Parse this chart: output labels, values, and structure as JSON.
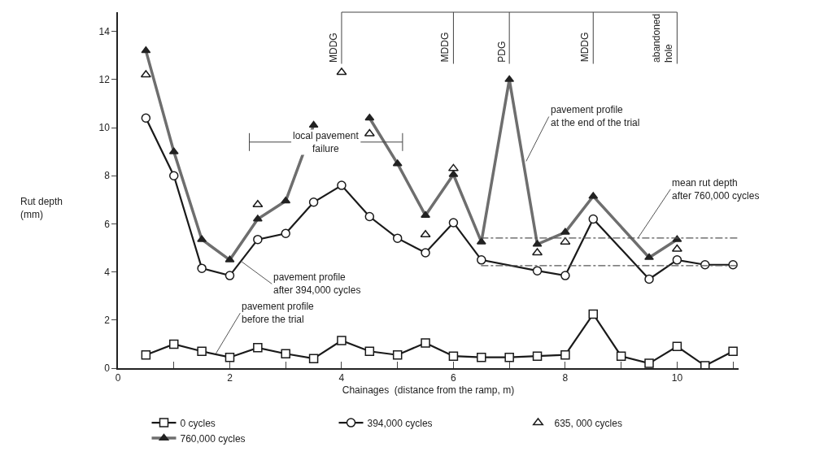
{
  "chart_data": {
    "type": "line",
    "xlabel": "Chainages  (distance from the ramp, m)",
    "ylabel": "Rut depth\n(mm)",
    "xlim": [
      0,
      11.1
    ],
    "ylim": [
      0,
      14.8
    ],
    "xticks": [
      0,
      {
        "value": 1,
        "label": null
      },
      2,
      {
        "value": 3,
        "label": null
      },
      4,
      {
        "value": 5,
        "label": null
      },
      6,
      {
        "value": 7,
        "label": null
      },
      8,
      {
        "value": 9,
        "label": null
      },
      10,
      {
        "value": 11,
        "label": null
      }
    ],
    "yticks": [
      0,
      2,
      4,
      6,
      8,
      10,
      12,
      14
    ],
    "grid": false,
    "legend": "bottom",
    "series": [
      {
        "name": "0 cycles",
        "type": "line",
        "marker": "square",
        "color": "#1a1a1a",
        "x": [
          0.5,
          1,
          1.5,
          2,
          2.5,
          3,
          3.5,
          4,
          4.5,
          5,
          5.5,
          6,
          6.5,
          7,
          7.5,
          8,
          8.5,
          9,
          9.5,
          10,
          10.5,
          11
        ],
        "values": [
          0.55,
          1.0,
          0.7,
          0.45,
          0.85,
          0.6,
          0.4,
          1.15,
          0.7,
          0.55,
          1.05,
          0.5,
          0.45,
          0.45,
          0.5,
          0.55,
          2.25,
          0.5,
          0.2,
          0.9,
          0.1,
          0.7
        ]
      },
      {
        "name": "394,000 cycles",
        "type": "line",
        "marker": "circle",
        "color": "#1a1a1a",
        "x": [
          0.5,
          1,
          1.5,
          2,
          2.5,
          3,
          3.5,
          4,
          4.5,
          5,
          5.5,
          6,
          6.5,
          7.5,
          8,
          8.5,
          9.5,
          10,
          10.5,
          11
        ],
        "values": [
          10.4,
          8.0,
          4.15,
          3.85,
          5.35,
          5.6,
          6.9,
          7.6,
          6.3,
          5.4,
          4.8,
          6.05,
          4.5,
          4.05,
          3.85,
          6.2,
          3.7,
          4.5,
          4.3,
          4.3
        ]
      },
      {
        "name": "635, 000 cycles",
        "type": "scatter",
        "marker": "triangle",
        "color": "#1a1a1a",
        "x": [
          0.5,
          2.5,
          4,
          4.5,
          5.5,
          6,
          7.5,
          8,
          10
        ],
        "values": [
          12.2,
          6.8,
          12.3,
          9.75,
          5.55,
          8.3,
          4.8,
          5.25,
          4.95
        ]
      },
      {
        "name": "760,000 cycles",
        "type": "line",
        "marker": "triangle",
        "color": "#6e6e6e",
        "x": [
          0.5,
          1,
          1.5,
          2,
          2.5,
          3,
          3.5,
          4,
          4.5,
          5,
          5.5,
          6,
          6.5,
          7,
          7.5,
          8,
          8.5,
          9.5,
          10
        ],
        "values": [
          13.2,
          9.0,
          5.35,
          4.5,
          6.2,
          6.95,
          10.1,
          null,
          10.4,
          8.5,
          6.35,
          8.05,
          5.25,
          12.0,
          5.15,
          5.65,
          7.15,
          4.6,
          5.35
        ]
      }
    ],
    "ref_lines": [
      {
        "axis": "y",
        "value": 5.41,
        "label": "mean rut depth\nafter 760,000 cycles",
        "line_style": "dashed",
        "color": "#555555"
      },
      {
        "axis": "y",
        "value": 4.26,
        "line_style": "dashed",
        "color": "#555555"
      },
      {
        "axis": "x",
        "value": 4,
        "label": "MDDG",
        "color": "#444444"
      },
      {
        "axis": "x",
        "value": 6,
        "label": "MDDG",
        "color": "#444444"
      },
      {
        "axis": "x",
        "value": 7,
        "label": "PDG",
        "color": "#444444"
      },
      {
        "axis": "x",
        "value": 8.5,
        "label": "MDDG",
        "color": "#444444"
      },
      {
        "axis": "x",
        "value": 10,
        "label": "abandoned\nhole",
        "color": "#444444"
      }
    ],
    "annotations": [
      "local pavement\nfailure",
      {
        "text": "pavement profile\nat the end of the trial",
        "x": 7.3,
        "y": 8.6
      },
      {
        "text": "pavement profile\nafter 394,000 cycles",
        "x": 2.2,
        "y": 4.45
      },
      {
        "text": "pavement profile\nbefore the trial",
        "x": 1.75,
        "y": 0.6
      }
    ]
  }
}
